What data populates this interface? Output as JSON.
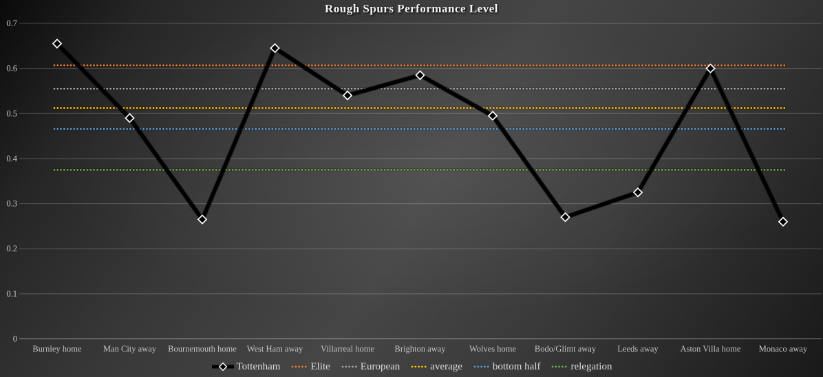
{
  "chart_data": {
    "type": "line",
    "title": "Rough Spurs Performance Level",
    "categories": [
      "Burnley home",
      "Man City away",
      "Bournemouth home",
      "West Ham away",
      "Villarreal home",
      "Brighton away",
      "Wolves home",
      "Bodo/Glimt away",
      "Leeds away",
      "Aston Villa home",
      "Monaco away"
    ],
    "series": [
      {
        "name": "Tottenham",
        "kind": "data-line",
        "color": "#000000",
        "marker": "diamond",
        "marker_fill": "#000000",
        "marker_stroke": "#ffffff",
        "values": [
          0.655,
          0.49,
          0.265,
          0.645,
          0.54,
          0.585,
          0.495,
          0.27,
          0.325,
          0.6,
          0.26
        ]
      },
      {
        "name": "Elite",
        "kind": "reference-line",
        "style": "dotted",
        "color": "#ED7D31",
        "value": 0.607
      },
      {
        "name": "European",
        "kind": "reference-line",
        "style": "dotted",
        "color": "#A5A5A5",
        "value": 0.555
      },
      {
        "name": "average",
        "kind": "reference-line",
        "style": "dotted",
        "color": "#FFC000",
        "value": 0.512
      },
      {
        "name": "bottom half",
        "kind": "reference-line",
        "style": "dotted",
        "color": "#5B9BD5",
        "value": 0.466
      },
      {
        "name": "relegation",
        "kind": "reference-line",
        "style": "dotted",
        "color": "#70AD47",
        "value": 0.375
      }
    ],
    "ylim": [
      0,
      0.7
    ],
    "ytick_step": 0.1,
    "ytick_labels": [
      "0",
      "0.1",
      "0.2",
      "0.3",
      "0.4",
      "0.5",
      "0.6",
      "0.7"
    ],
    "grid": true,
    "legend_position": "bottom"
  }
}
